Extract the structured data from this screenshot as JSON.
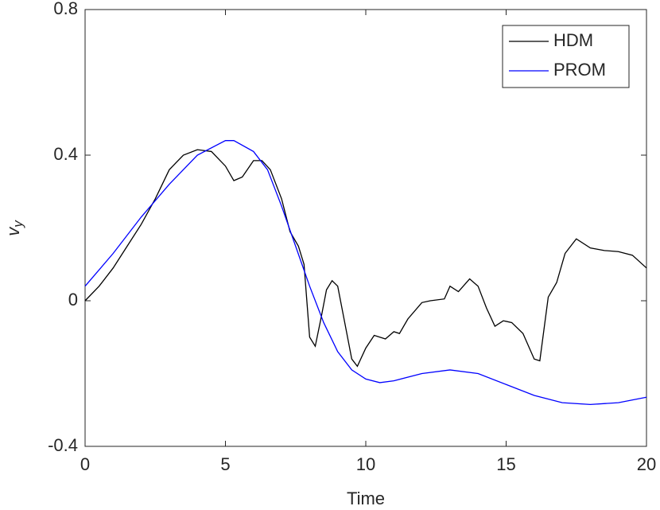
{
  "chart_data": {
    "type": "line",
    "xlabel": "Time",
    "ylabel": {
      "text": "v",
      "subscript": "y"
    },
    "xlim": [
      0,
      20
    ],
    "xticks": [
      0,
      5,
      10,
      15,
      20
    ],
    "ylim": [
      -0.4,
      0.8
    ],
    "yticks": [
      -0.4,
      0,
      0.4,
      0.8
    ],
    "legend": "northeast",
    "series": [
      {
        "name": "HDM",
        "color": "#000000",
        "x": [
          0,
          0.5,
          1,
          1.5,
          2,
          2.5,
          3,
          3.5,
          4,
          4.5,
          5,
          5.3,
          5.6,
          6,
          6.3,
          6.6,
          7,
          7.3,
          7.6,
          7.8,
          8,
          8.2,
          8.4,
          8.6,
          8.8,
          9,
          9.2,
          9.5,
          9.7,
          10,
          10.3,
          10.7,
          11,
          11.2,
          11.5,
          12,
          12.3,
          12.8,
          13,
          13.3,
          13.7,
          14,
          14.3,
          14.6,
          14.9,
          15.2,
          15.6,
          16,
          16.2,
          16.5,
          16.8,
          17.1,
          17.5,
          18,
          18.5,
          19,
          19.5,
          20
        ],
        "values": [
          0,
          0.04,
          0.09,
          0.15,
          0.21,
          0.28,
          0.36,
          0.4,
          0.415,
          0.41,
          0.37,
          0.33,
          0.34,
          0.385,
          0.385,
          0.36,
          0.28,
          0.19,
          0.15,
          0.1,
          -0.1,
          -0.125,
          -0.05,
          0.03,
          0.055,
          0.04,
          -0.04,
          -0.16,
          -0.18,
          -0.13,
          -0.095,
          -0.105,
          -0.085,
          -0.09,
          -0.05,
          -0.005,
          0,
          0.005,
          0.04,
          0.025,
          0.06,
          0.04,
          -0.02,
          -0.07,
          -0.055,
          -0.06,
          -0.09,
          -0.16,
          -0.165,
          0.01,
          0.05,
          0.13,
          0.17,
          0.145,
          0.138,
          0.135,
          0.125,
          0.09
        ]
      },
      {
        "name": "PROM",
        "color": "#0000ff",
        "x": [
          0,
          1,
          2,
          3,
          4,
          5,
          5.3,
          6,
          6.5,
          7,
          7.5,
          8,
          8.5,
          9,
          9.5,
          10,
          10.5,
          11,
          12,
          13,
          14,
          15,
          16,
          17,
          18,
          19,
          20
        ],
        "values": [
          0.04,
          0.13,
          0.23,
          0.32,
          0.4,
          0.44,
          0.44,
          0.41,
          0.36,
          0.26,
          0.15,
          0.04,
          -0.06,
          -0.14,
          -0.19,
          -0.215,
          -0.225,
          -0.22,
          -0.2,
          -0.19,
          -0.2,
          -0.23,
          -0.26,
          -0.28,
          -0.285,
          -0.28,
          -0.265
        ]
      }
    ]
  }
}
